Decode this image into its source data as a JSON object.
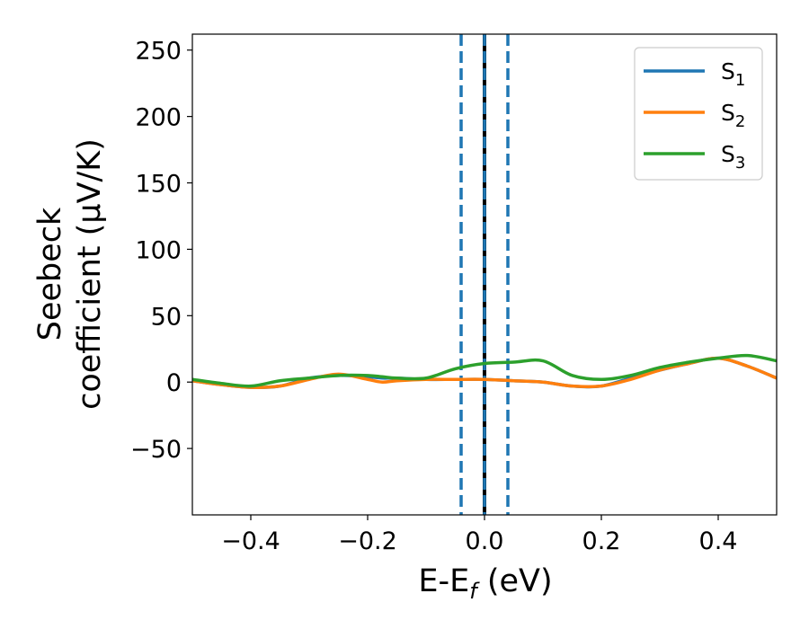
{
  "chart_data": {
    "type": "line",
    "title": "",
    "xlabel": "E-E",
    "xlabel_sub": "f",
    "xlabel_suffix": " (eV)",
    "ylabel_line1": "Seebeck",
    "ylabel_line2": "coefficient  (μV/K)",
    "xlim": [
      -0.5,
      0.5
    ],
    "ylim": [
      -100,
      262
    ],
    "x_ticks": [
      -0.4,
      -0.2,
      0.0,
      0.2,
      0.4
    ],
    "x_tick_labels": [
      "−0.4",
      "−0.2",
      "0.0",
      "0.2",
      "0.4"
    ],
    "y_ticks": [
      -50,
      0,
      50,
      100,
      150,
      200,
      250
    ],
    "y_tick_labels": [
      "−50",
      "0",
      "50",
      "100",
      "150",
      "200",
      "250"
    ],
    "legend_position": "top-right",
    "vertical_lines": [
      {
        "x": -0.04,
        "style": "dashed",
        "color": "#1f77b4"
      },
      {
        "x": 0.0,
        "style": "solid",
        "color": "#000000"
      },
      {
        "x": 0.0,
        "style": "dashed",
        "color": "#1f77b4"
      },
      {
        "x": 0.04,
        "style": "dashed",
        "color": "#1f77b4"
      }
    ],
    "x": [
      -0.5,
      -0.45,
      -0.4,
      -0.35,
      -0.3,
      -0.25,
      -0.2,
      -0.175,
      -0.15,
      -0.1,
      -0.05,
      0.0,
      0.05,
      0.1,
      0.15,
      0.2,
      0.25,
      0.3,
      0.35,
      0.4,
      0.45,
      0.5
    ],
    "series": [
      {
        "name": "S",
        "sub": "1",
        "color": "#1f77b4",
        "values": [
          1,
          -2,
          -4,
          -3,
          3,
          5,
          4,
          3,
          3,
          2,
          2,
          2,
          1,
          0,
          -3,
          -3,
          3,
          9,
          14,
          18,
          12,
          3
        ]
      },
      {
        "name": "S",
        "sub": "2",
        "color": "#ff7f0e",
        "values": [
          1,
          -2,
          -4,
          -3,
          2,
          6,
          2,
          0,
          1,
          2,
          2,
          2,
          1,
          0,
          -3,
          -3,
          2,
          9,
          14,
          18,
          12,
          3
        ]
      },
      {
        "name": "S",
        "sub": "3",
        "color": "#2ca02c",
        "values": [
          2,
          -1,
          -3,
          1,
          3,
          5,
          5,
          4,
          3,
          3,
          10,
          14,
          15,
          16,
          5,
          2,
          5,
          11,
          15,
          18,
          20,
          16
        ]
      }
    ]
  }
}
